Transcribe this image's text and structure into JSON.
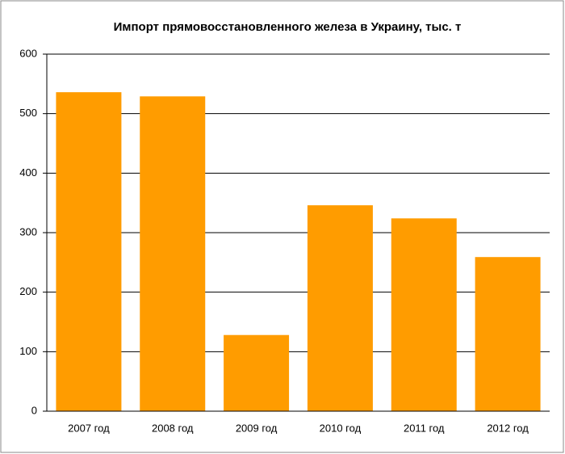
{
  "chart_data": {
    "type": "bar",
    "title": "Импорт прямовосстановленного железа в Украину, тыс. т",
    "categories": [
      "2007 год",
      "2008 год",
      "2009 год",
      "2010 год",
      "2011 год",
      "2012 год"
    ],
    "values": [
      536,
      529,
      128,
      346,
      324,
      259
    ],
    "color": "#ff9c00",
    "ylim": [
      0,
      600
    ],
    "yticks": [
      0,
      100,
      200,
      300,
      400,
      500,
      600
    ],
    "grid": true
  }
}
